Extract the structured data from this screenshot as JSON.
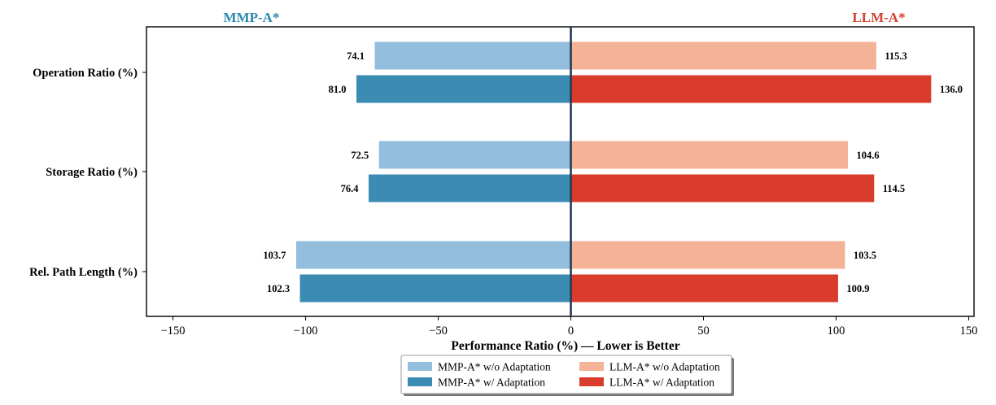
{
  "chart_data": {
    "type": "bar",
    "orientation": "horizontal-diverging",
    "categories": [
      "Operation Ratio (%)",
      "Storage Ratio (%)",
      "Rel. Path Length (%)"
    ],
    "series": [
      {
        "name": "MMP-A* w/o Adaptation",
        "side": "left",
        "values": [
          74.1,
          72.5,
          103.7
        ],
        "color": "#94bedd"
      },
      {
        "name": "MMP-A* w/ Adaptation",
        "side": "left",
        "values": [
          81.0,
          76.4,
          102.3
        ],
        "color": "#3b8bb3"
      },
      {
        "name": "LLM-A* w/o Adaptation",
        "side": "right",
        "values": [
          115.3,
          104.6,
          103.5
        ],
        "color": "#f4b396"
      },
      {
        "name": "LLM-A* w/ Adaptation",
        "side": "right",
        "values": [
          136.0,
          114.5,
          100.9
        ],
        "color": "#d93c2c"
      }
    ],
    "left_title": "MMP-A*",
    "right_title": "LLM-A*",
    "left_title_color": "#2c89b0",
    "right_title_color": "#d4412e",
    "xlabel": "Performance Ratio (%) — Lower is Better",
    "xlim": [
      -160,
      152
    ],
    "xticks": [
      -150,
      -100,
      -50,
      0,
      50,
      100,
      150
    ],
    "xtick_labels": [
      "−150",
      "−100",
      "−50",
      "0",
      "50",
      "100",
      "150"
    ],
    "zero_line_color": "#243b53",
    "legend_position": "bottom-center"
  }
}
